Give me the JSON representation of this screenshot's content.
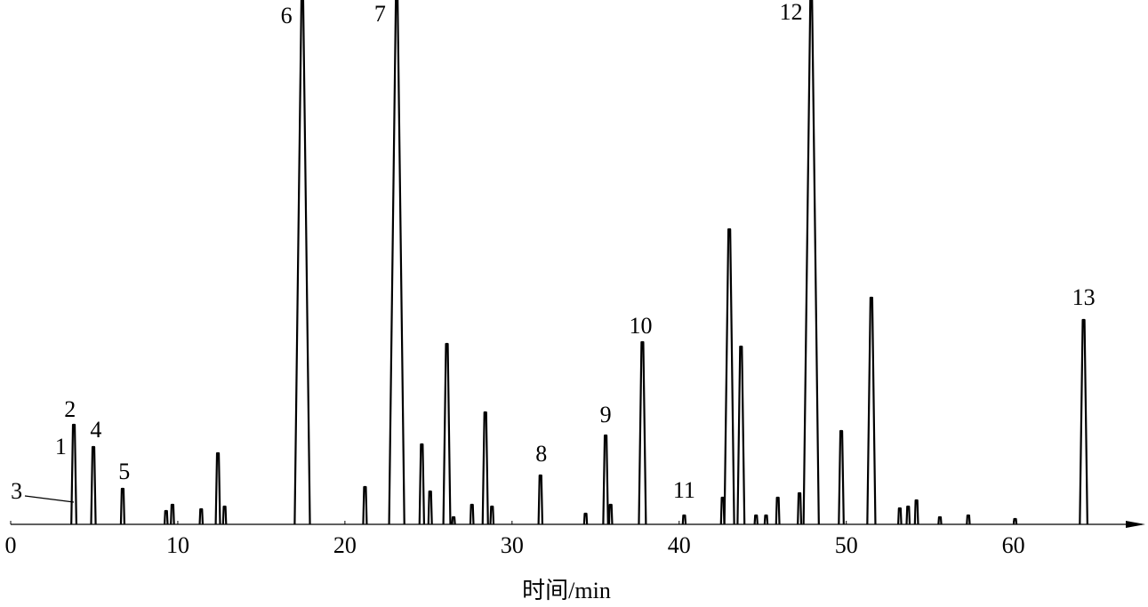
{
  "chart_data": {
    "type": "chromatogram",
    "x_label": "时间/min",
    "xlim": [
      0,
      68
    ],
    "ylim": [
      0,
      590
    ],
    "xticks": [
      0,
      10,
      20,
      30,
      40,
      50,
      60
    ],
    "color": "#000000",
    "x": [
      3.78,
      4.95,
      6.7,
      9.3,
      9.68,
      11.4,
      12.4,
      12.8,
      17.45,
      21.2,
      23.1,
      24.6,
      25.1,
      26.1,
      26.5,
      27.6,
      28.4,
      28.8,
      31.7,
      34.4,
      35.6,
      35.9,
      37.8,
      40.3,
      42.6,
      43.0,
      43.7,
      44.6,
      45.2,
      45.9,
      47.2,
      47.9,
      49.7,
      51.5,
      53.2,
      53.7,
      54.2,
      55.6,
      57.3,
      60.1,
      64.2
    ],
    "values": [
      112,
      87,
      40,
      15,
      22,
      17,
      80,
      20,
      590,
      42,
      590,
      90,
      37,
      203,
      8,
      22,
      126,
      20,
      55,
      12,
      100,
      22,
      205,
      10,
      30,
      332,
      200,
      10,
      10,
      30,
      35,
      590,
      105,
      255,
      18,
      20,
      27,
      8,
      10,
      6,
      230
    ],
    "annotations": [
      {
        "text": "1",
        "x": 3.0,
        "y": 85
      },
      {
        "text": "2",
        "x": 3.55,
        "y": 127
      },
      {
        "text": "3",
        "x": 0.35,
        "y": 35
      },
      {
        "text": "4",
        "x": 5.1,
        "y": 104
      },
      {
        "text": "5",
        "x": 6.8,
        "y": 57
      },
      {
        "text": "6",
        "x": 16.5,
        "y": 570
      },
      {
        "text": "7",
        "x": 22.1,
        "y": 572
      },
      {
        "text": "8",
        "x": 31.75,
        "y": 77
      },
      {
        "text": "9",
        "x": 35.6,
        "y": 121
      },
      {
        "text": "10",
        "x": 37.7,
        "y": 221
      },
      {
        "text": "11",
        "x": 40.3,
        "y": 36
      },
      {
        "text": "12",
        "x": 46.7,
        "y": 574
      },
      {
        "text": "13",
        "x": 64.2,
        "y": 253
      }
    ]
  }
}
